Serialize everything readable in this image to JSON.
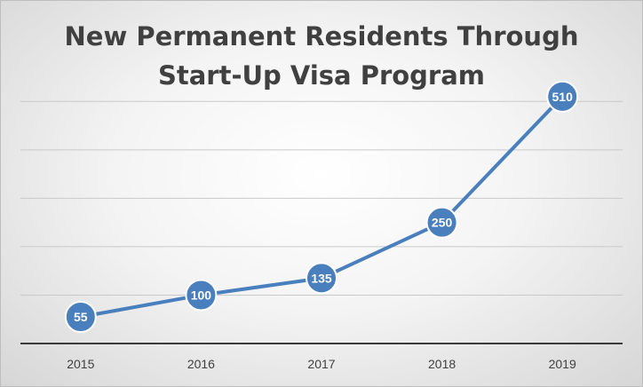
{
  "chart_data": {
    "type": "line",
    "title_lines": [
      "New Permanent Residents Through",
      "Start-Up Visa Program"
    ],
    "categories": [
      "2015",
      "2016",
      "2017",
      "2018",
      "2019"
    ],
    "series": [
      {
        "values": [
          55,
          100,
          135,
          250,
          510
        ],
        "color": "#4a7fbe"
      }
    ],
    "data_labels": [
      "55",
      "100",
      "135",
      "250",
      "510"
    ],
    "ylim": [
      0,
      550
    ],
    "y_grid_step": 100,
    "y_tick_labels_shown": false,
    "grid": true,
    "legend": "none",
    "xlabel": "",
    "ylabel": ""
  }
}
